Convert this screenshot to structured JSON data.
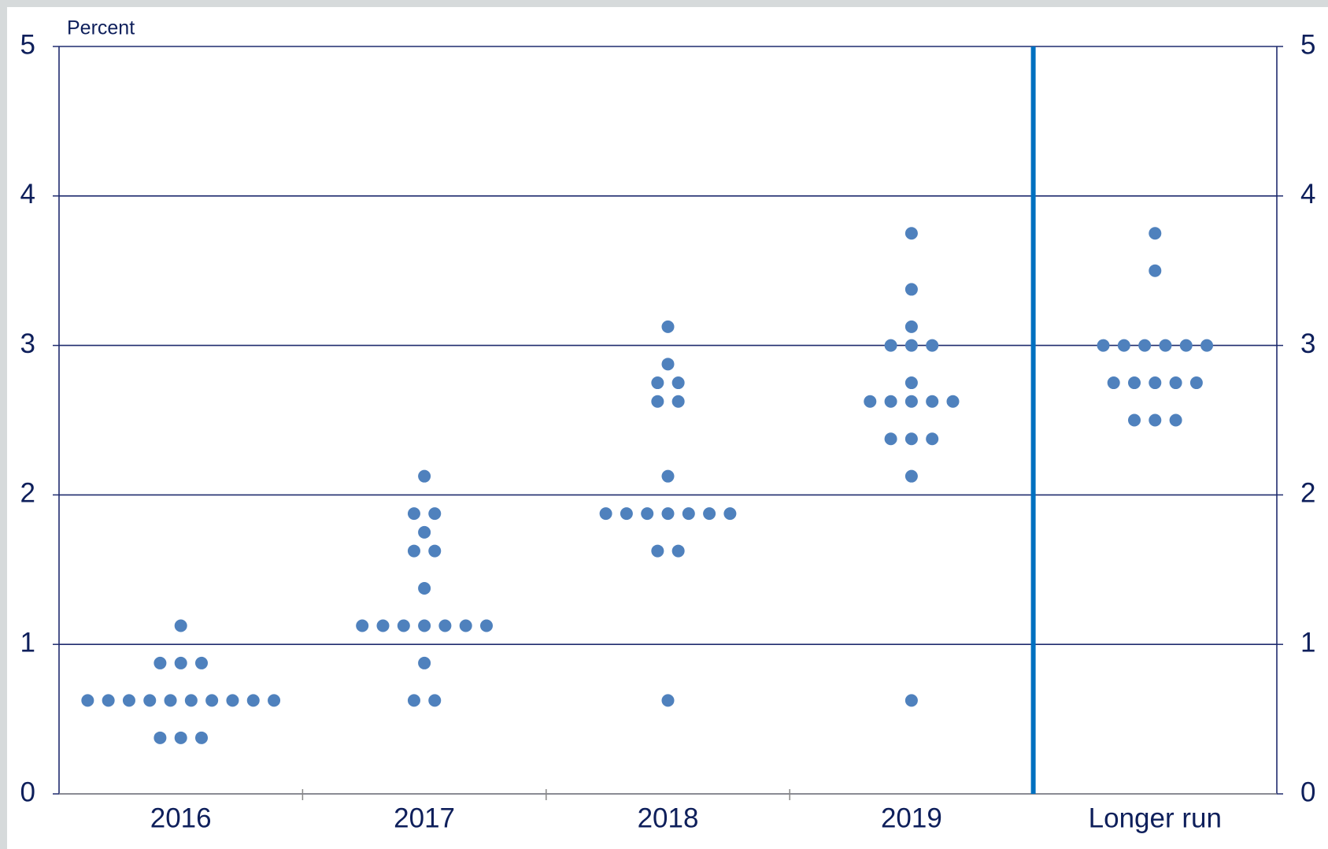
{
  "chart_data": {
    "type": "dot",
    "ylabel": "Percent",
    "categories": [
      "2016",
      "2017",
      "2018",
      "2019",
      "Longer run"
    ],
    "values": [
      [
        1.125,
        0.875,
        0.875,
        0.875,
        0.625,
        0.625,
        0.625,
        0.625,
        0.625,
        0.625,
        0.625,
        0.625,
        0.625,
        0.625,
        0.375,
        0.375,
        0.375
      ],
      [
        2.125,
        1.875,
        1.875,
        1.75,
        1.625,
        1.625,
        1.375,
        1.125,
        1.125,
        1.125,
        1.125,
        1.125,
        1.125,
        1.125,
        0.875,
        0.625,
        0.625
      ],
      [
        3.125,
        2.875,
        2.75,
        2.75,
        2.625,
        2.625,
        2.125,
        1.875,
        1.875,
        1.875,
        1.875,
        1.875,
        1.875,
        1.875,
        1.625,
        1.625,
        0.625
      ],
      [
        3.75,
        3.375,
        3.125,
        3.0,
        3.0,
        3.0,
        2.75,
        2.625,
        2.625,
        2.625,
        2.625,
        2.625,
        2.375,
        2.375,
        2.375,
        2.125,
        0.625
      ],
      [
        3.75,
        3.5,
        3.0,
        3.0,
        3.0,
        3.0,
        3.0,
        3.0,
        2.75,
        2.75,
        2.75,
        2.75,
        2.75,
        2.5,
        2.5,
        2.5
      ]
    ],
    "color": "#4f81bd",
    "ylim": [
      0,
      5
    ],
    "yticks": [
      0,
      1,
      2,
      3,
      4,
      5
    ],
    "y2lim": [
      0,
      5
    ],
    "y2ticks": [
      0,
      1,
      2,
      3,
      4,
      5
    ],
    "grid": true
  }
}
